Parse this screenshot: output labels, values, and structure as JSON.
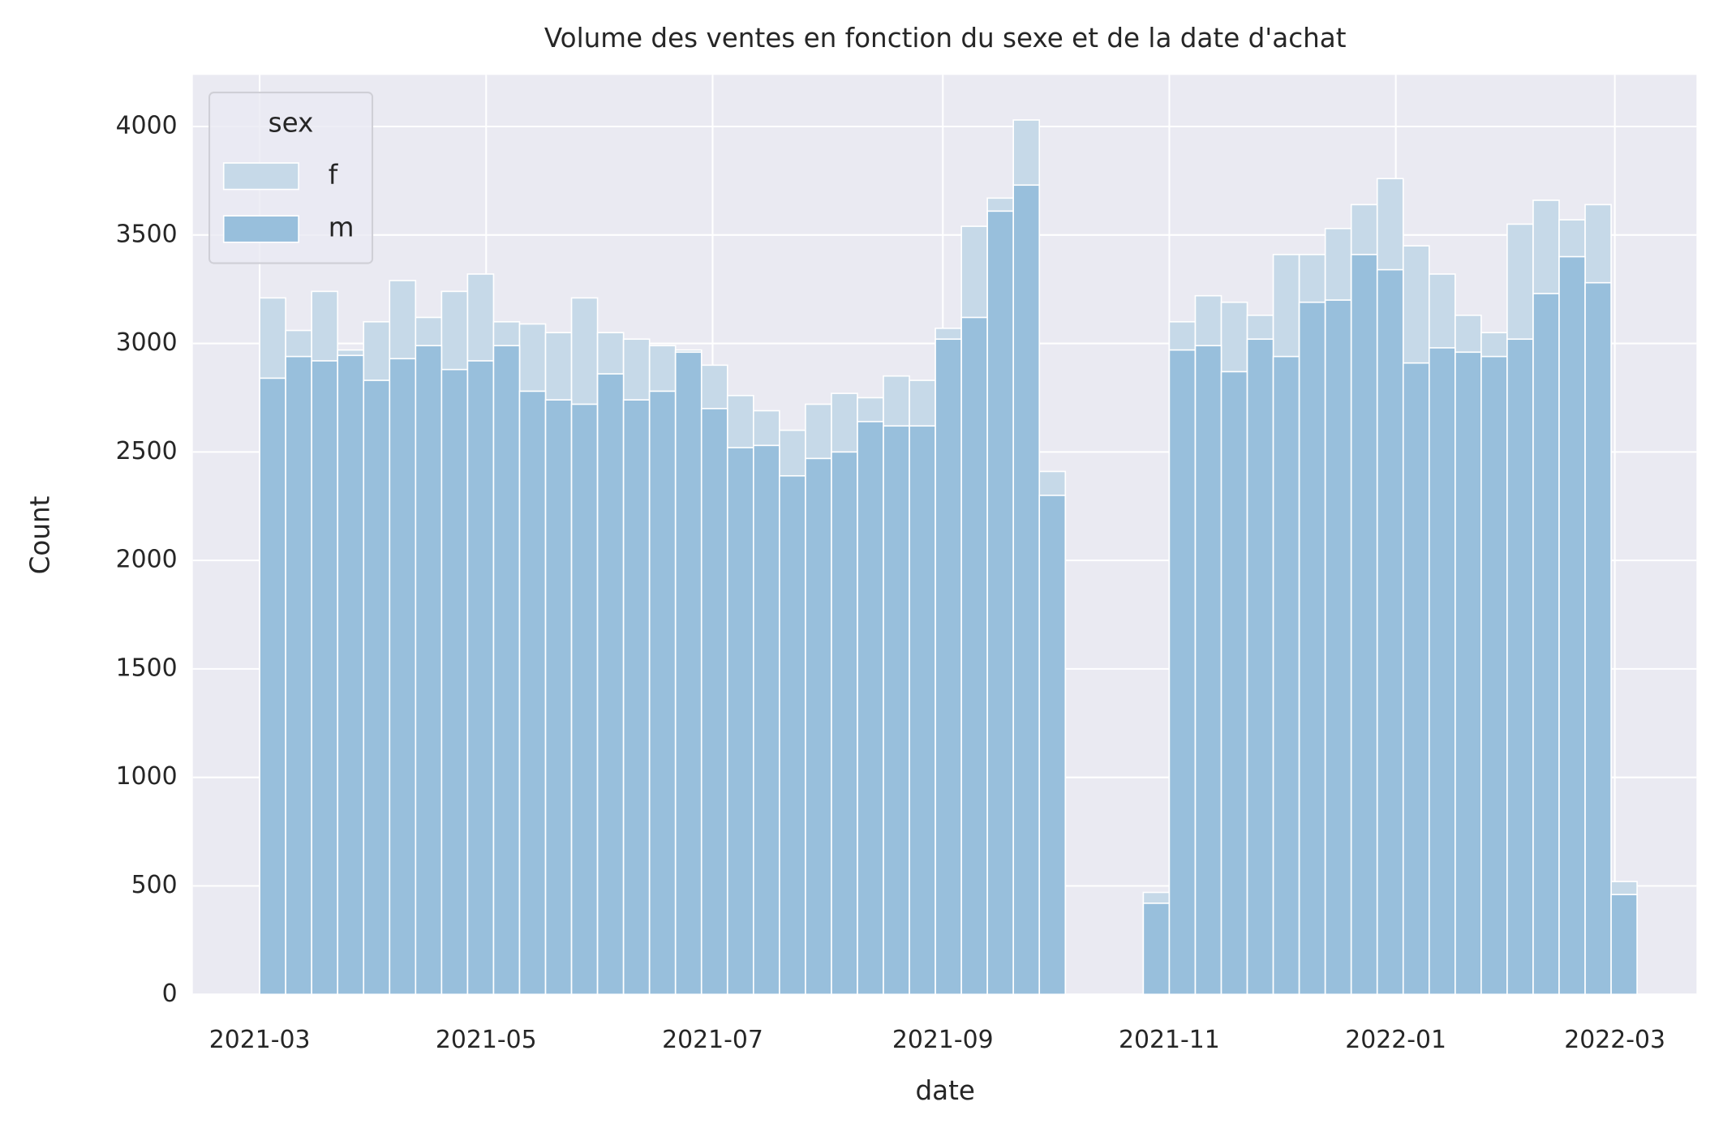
{
  "chart_data": {
    "type": "histogram",
    "title": "Volume des ventes en fonction du sexe et de la date d'achat",
    "xlabel": "date",
    "ylabel": "Count",
    "legend_title": "sex",
    "legend": "upper left",
    "grid": true,
    "bins": [
      "2021-03-01",
      "2021-03-08",
      "2021-03-15",
      "2021-03-22",
      "2021-03-29",
      "2021-04-05",
      "2021-04-12",
      "2021-04-19",
      "2021-04-26",
      "2021-05-03",
      "2021-05-10",
      "2021-05-17",
      "2021-05-24",
      "2021-05-31",
      "2021-06-07",
      "2021-06-14",
      "2021-06-21",
      "2021-06-28",
      "2021-07-05",
      "2021-07-12",
      "2021-07-19",
      "2021-07-26",
      "2021-08-02",
      "2021-08-09",
      "2021-08-16",
      "2021-08-23",
      "2021-08-30",
      "2021-09-06",
      "2021-09-13",
      "2021-09-20",
      "2021-09-27",
      "2021-10-04",
      "2021-10-11",
      "2021-10-18",
      "2021-10-25",
      "2021-11-01",
      "2021-11-08",
      "2021-11-15",
      "2021-11-22",
      "2021-11-29",
      "2021-12-06",
      "2021-12-13",
      "2021-12-20",
      "2021-12-27",
      "2022-01-03",
      "2022-01-10",
      "2022-01-17",
      "2022-01-24",
      "2022-01-31",
      "2022-02-07",
      "2022-02-14",
      "2022-02-21",
      "2022-02-28",
      "2022-03-07"
    ],
    "series": [
      {
        "name": "f",
        "color": "#c6d9e8",
        "values": [
          3210,
          3060,
          3240,
          2970,
          3100,
          3290,
          3120,
          3240,
          3320,
          3100,
          3090,
          3050,
          3210,
          3050,
          3020,
          2990,
          2970,
          2900,
          2760,
          2690,
          2600,
          2720,
          2770,
          2750,
          2850,
          2830,
          3070,
          3540,
          3670,
          4030,
          2410,
          0,
          0,
          0,
          470,
          3100,
          3220,
          3190,
          3130,
          3410,
          3410,
          3530,
          3640,
          3760,
          3450,
          3320,
          3130,
          3050,
          3550,
          3660,
          3570,
          3640,
          520
        ]
      },
      {
        "name": "m",
        "color": "#98bfdc",
        "values": [
          2840,
          2940,
          2920,
          2945,
          2830,
          2930,
          2990,
          2880,
          2920,
          2990,
          2780,
          2740,
          2720,
          2860,
          2740,
          2780,
          2960,
          2700,
          2520,
          2530,
          2390,
          2470,
          2500,
          2640,
          2620,
          2620,
          3020,
          3120,
          3610,
          3730,
          2300,
          0,
          0,
          0,
          420,
          2970,
          2990,
          2870,
          3020,
          2940,
          3190,
          3200,
          3410,
          3340,
          2910,
          2980,
          2960,
          2940,
          3020,
          3230,
          3400,
          3280,
          460
        ]
      }
    ],
    "xlim": [
      "2021-02-11",
      "2022-03-23"
    ],
    "xticks": [
      {
        "value": "2021-03-01",
        "label": "2021-03"
      },
      {
        "value": "2021-05-01",
        "label": "2021-05"
      },
      {
        "value": "2021-07-01",
        "label": "2021-07"
      },
      {
        "value": "2021-09-01",
        "label": "2021-09"
      },
      {
        "value": "2021-11-01",
        "label": "2021-11"
      },
      {
        "value": "2022-01-01",
        "label": "2022-01"
      },
      {
        "value": "2022-03-01",
        "label": "2022-03"
      }
    ],
    "ylim": [
      0,
      4238
    ],
    "yticks": [
      0,
      500,
      1000,
      1500,
      2000,
      2500,
      3000,
      3500,
      4000
    ]
  }
}
